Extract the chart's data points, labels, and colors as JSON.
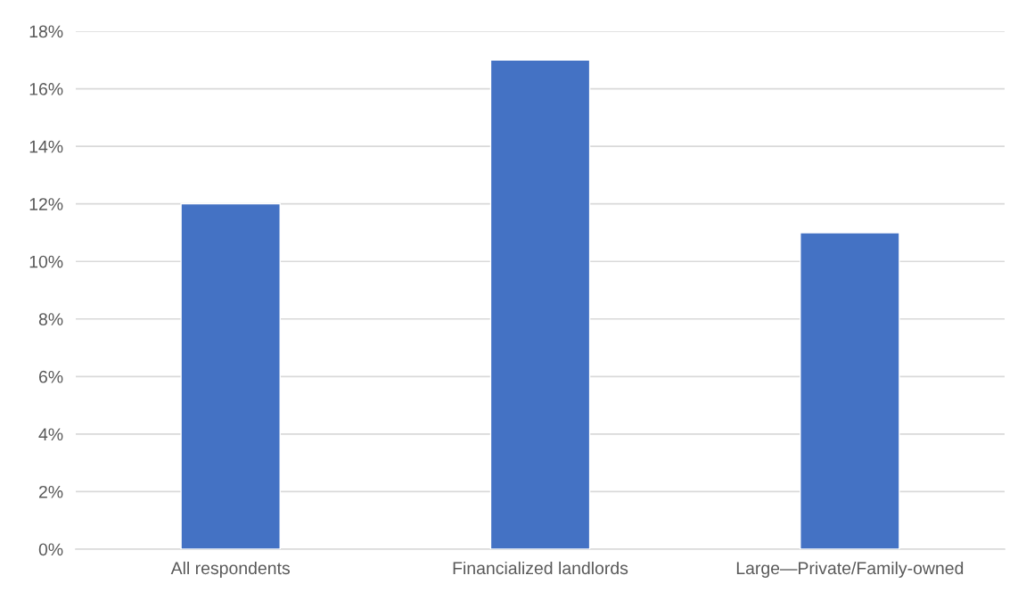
{
  "chart_data": {
    "type": "bar",
    "categories": [
      "All respondents",
      "Financialized landlords",
      "Large—Private/Family-owned"
    ],
    "values": [
      12,
      17,
      11
    ],
    "color": "#4472c4",
    "ylim": [
      0,
      18
    ],
    "yticks": [
      {
        "value": 0,
        "label": "0%"
      },
      {
        "value": 2,
        "label": "2%"
      },
      {
        "value": 4,
        "label": "4%"
      },
      {
        "value": 6,
        "label": "6%"
      },
      {
        "value": 8,
        "label": "8%"
      },
      {
        "value": 10,
        "label": "10%"
      },
      {
        "value": 12,
        "label": "12%"
      },
      {
        "value": 14,
        "label": "14%"
      },
      {
        "value": 16,
        "label": "16%"
      },
      {
        "value": 18,
        "label": "18%"
      }
    ],
    "grid": "y"
  }
}
